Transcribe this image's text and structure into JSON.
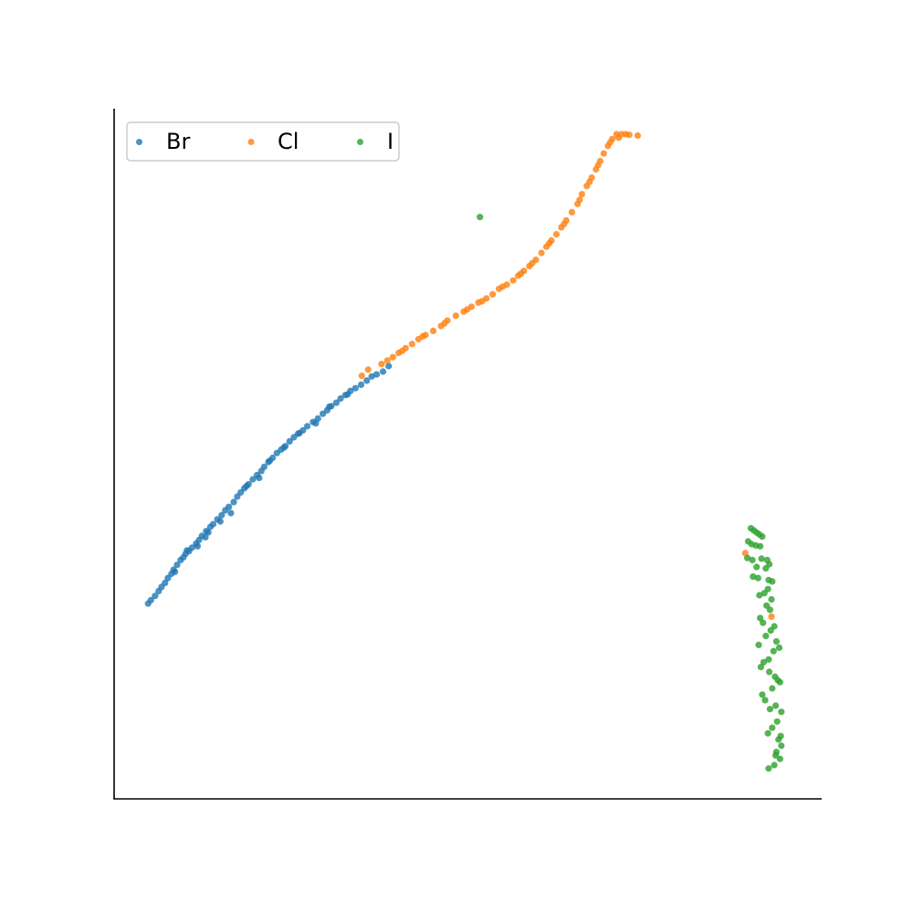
{
  "chart_data": {
    "type": "scatter",
    "title": "",
    "xlabel": "",
    "ylabel": "",
    "xlim": [
      0,
      100
    ],
    "ylim": [
      0,
      100
    ],
    "axes": {
      "ticks": false,
      "spines": [
        "left",
        "bottom"
      ]
    },
    "grid": false,
    "legend": {
      "placement": "top-left",
      "columns": 3
    },
    "series": [
      {
        "name": "Br",
        "color": "#1f77b4",
        "points": [
          [
            4.8,
            28.3
          ],
          [
            5.2,
            28.8
          ],
          [
            5.8,
            29.4
          ],
          [
            6.3,
            30.1
          ],
          [
            6.7,
            30.7
          ],
          [
            7.2,
            31.3
          ],
          [
            7.6,
            32.0
          ],
          [
            8.1,
            32.6
          ],
          [
            8.4,
            33.2
          ],
          [
            8.9,
            33.9
          ],
          [
            9.4,
            34.6
          ],
          [
            9.8,
            35.0
          ],
          [
            10.1,
            35.5
          ],
          [
            10.6,
            35.9
          ],
          [
            11.0,
            36.4
          ],
          [
            11.6,
            37.0
          ],
          [
            12.0,
            37.5
          ],
          [
            12.4,
            38.1
          ],
          [
            13.0,
            38.8
          ],
          [
            13.6,
            39.4
          ],
          [
            14.0,
            39.8
          ],
          [
            14.6,
            40.5
          ],
          [
            15.2,
            41.1
          ],
          [
            15.7,
            41.8
          ],
          [
            16.2,
            42.3
          ],
          [
            16.9,
            43.0
          ],
          [
            17.4,
            43.8
          ],
          [
            17.9,
            44.4
          ],
          [
            18.4,
            45.0
          ],
          [
            19.0,
            45.6
          ],
          [
            19.6,
            46.3
          ],
          [
            20.2,
            46.9
          ],
          [
            20.8,
            47.5
          ],
          [
            21.2,
            48.1
          ],
          [
            21.8,
            48.8
          ],
          [
            22.4,
            49.4
          ],
          [
            23.0,
            50.1
          ],
          [
            23.6,
            50.6
          ],
          [
            24.2,
            51.1
          ],
          [
            24.8,
            51.8
          ],
          [
            25.4,
            52.4
          ],
          [
            26.0,
            52.9
          ],
          [
            26.7,
            53.4
          ],
          [
            27.3,
            54.0
          ],
          [
            28.1,
            54.6
          ],
          [
            28.8,
            55.1
          ],
          [
            29.5,
            55.8
          ],
          [
            30.1,
            56.3
          ],
          [
            30.7,
            56.9
          ],
          [
            31.4,
            57.4
          ],
          [
            32.0,
            58.0
          ],
          [
            32.7,
            58.5
          ],
          [
            33.4,
            59.1
          ],
          [
            34.1,
            59.5
          ],
          [
            34.9,
            60.0
          ],
          [
            35.7,
            60.6
          ],
          [
            36.4,
            61.2
          ],
          [
            37.1,
            61.5
          ],
          [
            38.0,
            61.9
          ],
          [
            38.8,
            62.7
          ],
          [
            8.6,
            32.9
          ],
          [
            11.8,
            36.6
          ],
          [
            12.9,
            37.9
          ],
          [
            15.0,
            40.2
          ],
          [
            18.7,
            45.3
          ],
          [
            20.5,
            46.5
          ],
          [
            24.0,
            50.9
          ],
          [
            26.2,
            53.0
          ],
          [
            28.5,
            54.4
          ],
          [
            33.0,
            58.6
          ],
          [
            10.3,
            36.0
          ],
          [
            13.3,
            38.6
          ],
          [
            22.0,
            49.0
          ],
          [
            30.4,
            56.8
          ],
          [
            16.5,
            41.4
          ]
        ]
      },
      {
        "name": "Cl",
        "color": "#ff7f0e",
        "points": [
          [
            35.0,
            61.3
          ],
          [
            35.9,
            62.2
          ],
          [
            37.8,
            63.0
          ],
          [
            38.6,
            63.5
          ],
          [
            39.4,
            64.0
          ],
          [
            40.2,
            64.6
          ],
          [
            41.2,
            65.3
          ],
          [
            42.1,
            65.9
          ],
          [
            43.0,
            66.6
          ],
          [
            44.0,
            67.2
          ],
          [
            45.1,
            67.8
          ],
          [
            46.2,
            68.5
          ],
          [
            47.1,
            69.3
          ],
          [
            48.3,
            70.0
          ],
          [
            49.4,
            70.6
          ],
          [
            50.5,
            71.3
          ],
          [
            51.5,
            71.9
          ],
          [
            52.6,
            72.5
          ],
          [
            53.5,
            73.1
          ],
          [
            54.4,
            73.9
          ],
          [
            55.5,
            74.5
          ],
          [
            56.4,
            75.1
          ],
          [
            57.1,
            75.8
          ],
          [
            57.9,
            76.5
          ],
          [
            58.7,
            77.2
          ],
          [
            59.6,
            78.1
          ],
          [
            60.4,
            79.1
          ],
          [
            61.1,
            80.0
          ],
          [
            61.8,
            80.9
          ],
          [
            62.5,
            81.8
          ],
          [
            63.2,
            82.8
          ],
          [
            63.9,
            83.8
          ],
          [
            64.7,
            85.0
          ],
          [
            65.5,
            86.2
          ],
          [
            66.1,
            87.6
          ],
          [
            66.8,
            88.8
          ],
          [
            67.5,
            90.0
          ],
          [
            68.1,
            91.2
          ],
          [
            68.7,
            92.4
          ],
          [
            69.2,
            93.5
          ],
          [
            69.8,
            94.6
          ],
          [
            70.4,
            95.6
          ],
          [
            71.0,
            96.3
          ],
          [
            71.7,
            96.3
          ],
          [
            72.3,
            96.3
          ],
          [
            72.8,
            96.2
          ],
          [
            74.0,
            96.1
          ],
          [
            40.7,
            64.9
          ],
          [
            43.6,
            67.0
          ],
          [
            46.7,
            68.9
          ],
          [
            49.9,
            70.9
          ],
          [
            52.0,
            72.1
          ],
          [
            54.9,
            74.2
          ],
          [
            57.5,
            76.1
          ],
          [
            59.1,
            77.6
          ],
          [
            61.5,
            80.5
          ],
          [
            63.6,
            83.3
          ],
          [
            65.8,
            86.8
          ],
          [
            67.2,
            89.4
          ],
          [
            68.4,
            91.8
          ],
          [
            70.1,
            95.1
          ],
          [
            71.3,
            95.8
          ],
          [
            89.2,
            35.6
          ],
          [
            92.9,
            26.4
          ]
        ]
      },
      {
        "name": "I",
        "color": "#2ca02c",
        "points": [
          [
            51.7,
            84.3
          ],
          [
            90.0,
            39.2
          ],
          [
            90.4,
            38.9
          ],
          [
            90.8,
            38.6
          ],
          [
            91.2,
            38.3
          ],
          [
            91.6,
            38.0
          ],
          [
            89.6,
            37.3
          ],
          [
            90.1,
            36.9
          ],
          [
            90.7,
            36.7
          ],
          [
            91.3,
            36.6
          ],
          [
            89.5,
            34.9
          ],
          [
            90.2,
            34.6
          ],
          [
            91.5,
            34.8
          ],
          [
            92.3,
            34.6
          ],
          [
            92.6,
            34.0
          ],
          [
            92.1,
            33.4
          ],
          [
            90.3,
            32.2
          ],
          [
            91.0,
            32.0
          ],
          [
            92.5,
            31.7
          ],
          [
            93.0,
            31.5
          ],
          [
            92.4,
            30.4
          ],
          [
            91.9,
            29.8
          ],
          [
            91.2,
            29.5
          ],
          [
            92.2,
            28.0
          ],
          [
            92.7,
            27.4
          ],
          [
            91.3,
            26.2
          ],
          [
            91.7,
            25.5
          ],
          [
            93.3,
            25.0
          ],
          [
            92.8,
            24.4
          ],
          [
            92.1,
            23.6
          ],
          [
            93.6,
            22.8
          ],
          [
            94.0,
            21.9
          ],
          [
            93.2,
            21.4
          ],
          [
            92.5,
            20.2
          ],
          [
            91.8,
            19.8
          ],
          [
            91.4,
            19.1
          ],
          [
            92.6,
            18.4
          ],
          [
            93.4,
            17.7
          ],
          [
            94.1,
            16.9
          ],
          [
            93.0,
            16.0
          ],
          [
            91.6,
            15.1
          ],
          [
            92.0,
            14.3
          ],
          [
            93.5,
            13.5
          ],
          [
            94.3,
            12.6
          ],
          [
            93.7,
            11.2
          ],
          [
            93.0,
            10.3
          ],
          [
            92.4,
            9.5
          ],
          [
            93.9,
            8.6
          ],
          [
            94.3,
            7.7
          ],
          [
            93.6,
            6.8
          ],
          [
            94.1,
            5.8
          ],
          [
            93.3,
            4.9
          ],
          [
            92.5,
            4.4
          ],
          [
            90.8,
            33.6
          ],
          [
            92.9,
            28.9
          ],
          [
            91.1,
            22.3
          ],
          [
            93.8,
            17.2
          ],
          [
            92.7,
            13.0
          ],
          [
            94.2,
            9.1
          ],
          [
            93.5,
            6.3
          ]
        ]
      }
    ]
  }
}
